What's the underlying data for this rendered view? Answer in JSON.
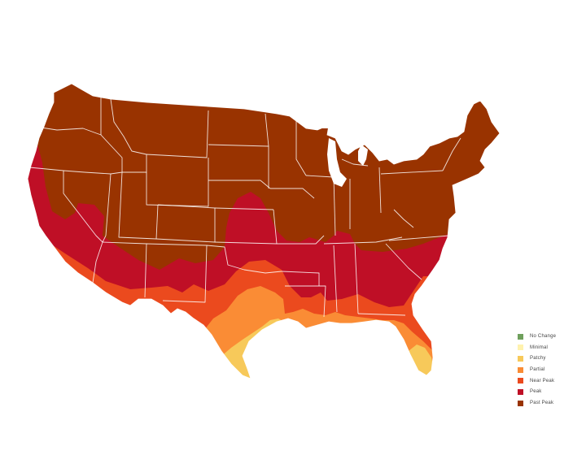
{
  "map": {
    "region": "contiguous-united-states",
    "colors": {
      "past_peak": "#993300",
      "peak": "#BF0F26",
      "near_peak": "#EB4A1E",
      "partial": "#FA8C35",
      "patchy": "#F7C95A",
      "minimal": "#FFF2AE",
      "no_change": "#6FA05C"
    }
  },
  "legend": {
    "items": [
      {
        "label": "No Change",
        "color": "#6FA05C"
      },
      {
        "label": "Minimal",
        "color": "#FFF2AE"
      },
      {
        "label": "Patchy",
        "color": "#F7C95A"
      },
      {
        "label": "Partial",
        "color": "#FA8C35"
      },
      {
        "label": "Near Peak",
        "color": "#EB4A1E"
      },
      {
        "label": "Peak",
        "color": "#BF0F26"
      },
      {
        "label": "Past Peak",
        "color": "#993300"
      }
    ]
  }
}
